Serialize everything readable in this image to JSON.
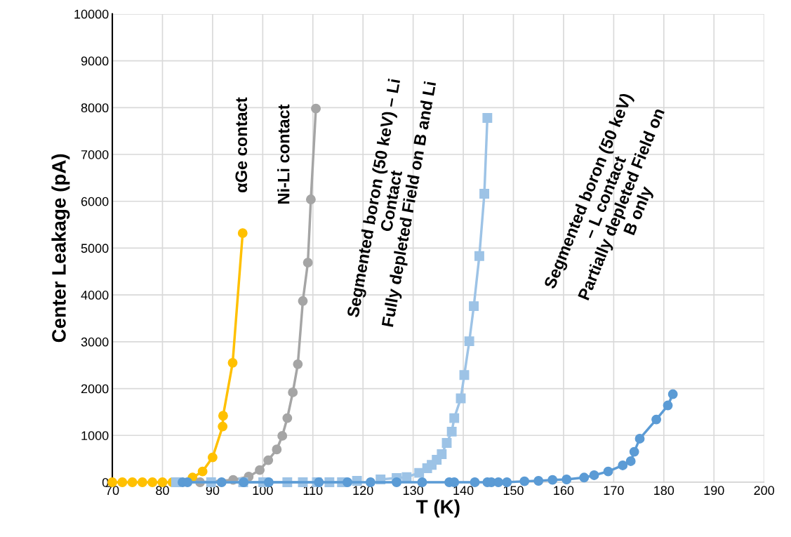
{
  "chart_data": {
    "type": "line",
    "xlabel": "T (K)",
    "ylabel": "Center Leakage (pA)",
    "xlim": [
      70,
      200
    ],
    "xticks": [
      70,
      80,
      90,
      100,
      110,
      120,
      130,
      140,
      150,
      160,
      170,
      180,
      190,
      200
    ],
    "ylim": [
      0,
      10000
    ],
    "yticks": [
      0,
      1000,
      2000,
      3000,
      4000,
      5000,
      6000,
      7000,
      8000,
      9000,
      10000
    ],
    "grid": true,
    "legend": false,
    "series": [
      {
        "color": "#ffc000",
        "marker": "circle",
        "x": [
          70,
          72,
          74,
          76,
          78,
          80,
          82,
          84.2,
          86,
          88,
          90,
          92,
          92.1,
          94,
          96
        ],
        "values": [
          0,
          0,
          0,
          0,
          0,
          0,
          0,
          null,
          100,
          230,
          530,
          1190,
          1420,
          2550,
          5320
        ]
      },
      {
        "color": "#a5a5a5",
        "marker": "circle",
        "x": [
          87.5,
          94.1,
          97.2,
          99.4,
          101.1,
          102.8,
          103.9,
          104.9,
          106,
          107,
          108,
          109,
          109.6,
          110.6
        ],
        "values": [
          0,
          50,
          120,
          260,
          470,
          700,
          990,
          1370,
          1920,
          2520,
          3870,
          4690,
          6040,
          7980
        ]
      },
      {
        "color": "#9dc3e6",
        "marker": "square",
        "x": [
          82.7,
          89.7,
          96.1,
          100.1,
          104.9,
          108,
          110.8,
          113.3,
          115.8,
          118.8,
          120.8,
          123.5,
          126.7,
          128.7,
          131.2,
          132.8,
          133.7,
          134.7,
          135.7,
          136.7,
          137.7,
          138.2,
          139.5,
          140.2,
          141.2,
          142.1,
          143.2,
          144.2,
          144.8
        ],
        "values": [
          0,
          0,
          0,
          0,
          0,
          0,
          0,
          0,
          0,
          30,
          null,
          60,
          90,
          110,
          200,
          300,
          370,
          480,
          600,
          840,
          1080,
          1370,
          1790,
          2290,
          3010,
          3760,
          4830,
          6160,
          7780
        ]
      },
      {
        "color": "#5b9bd5",
        "marker": "circle",
        "x": [
          84,
          85,
          91.8,
          96.2,
          101.2,
          111.2,
          116.9,
          121.5,
          126.7,
          131.8,
          137.2,
          138.2,
          142.3,
          144.8,
          145.6,
          147,
          148.7,
          152.2,
          155,
          157.8,
          160.6,
          164.1,
          166.1,
          168.9,
          171.8,
          173.4,
          174.1,
          175.2,
          178.5,
          180.8,
          181.8
        ],
        "values": [
          0,
          0,
          0,
          0,
          0,
          0,
          0,
          0,
          0,
          0,
          0,
          0,
          0,
          0,
          0,
          0,
          0,
          20,
          30,
          50,
          60,
          100,
          150,
          230,
          360,
          450,
          650,
          930,
          1340,
          1640,
          1880
        ]
      }
    ],
    "annotations": [
      "αGe contact",
      "Ni-Li contact",
      "Segmented boron (50 keV) – Li\nContact\nFully depleted Field on B and Li",
      "Segmented boron (50 keV)\n– L contact\nPartially depleted Field on\nB only"
    ]
  }
}
